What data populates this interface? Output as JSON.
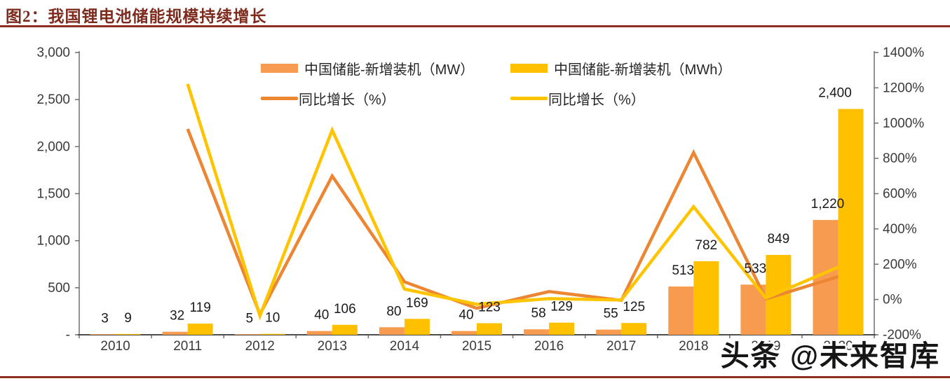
{
  "title": "图2：我国锂电池储能规模持续增长",
  "watermark": "头条 @未来智库",
  "colors": {
    "title_red": "#7e2b1e",
    "rule_red": "#8c2f1e",
    "bar_mw_orange": "#F79B51",
    "bar_mwh_yellow": "#FFC000",
    "line_mw_orange": "#ED8633",
    "line_mwh_yellow": "#FFC400",
    "axis_gray": "#6f6f6f",
    "axis_text": "#3a3a3a",
    "label_text": "#1a1a1a"
  },
  "legend": {
    "items": [
      {
        "label": "中国储能-新增装机（MW）",
        "swatch": "bar",
        "color": "#F79B51"
      },
      {
        "label": "中国储能-新增装机（MWh）",
        "swatch": "bar",
        "color": "#FFC000"
      },
      {
        "label": "同比增长（%）",
        "swatch": "line",
        "color": "#ED8633"
      },
      {
        "label": "同比增长（%）",
        "swatch": "line",
        "color": "#FFC400"
      }
    ]
  },
  "chart_data": {
    "type": "bar",
    "subtype": "combo-bar-line-dual-axis",
    "categories": [
      "2010",
      "2011",
      "2012",
      "2013",
      "2014",
      "2015",
      "2016",
      "2017",
      "2018",
      "2019",
      "2020"
    ],
    "bar_series": [
      {
        "name": "中国储能-新增装机（MW）",
        "axis": "left",
        "color": "#F79B51",
        "values": [
          3,
          32,
          5,
          40,
          80,
          40,
          58,
          55,
          513,
          533,
          1220
        ]
      },
      {
        "name": "中国储能-新增装机（MWh）",
        "axis": "left",
        "color": "#FFC000",
        "values": [
          9,
          119,
          10,
          106,
          169,
          123,
          129,
          125,
          782,
          849,
          2400
        ]
      }
    ],
    "line_series": [
      {
        "name": "同比增长（%）",
        "axis": "right",
        "color": "#ED8633",
        "values": [
          null,
          967,
          -84,
          700,
          100,
          -50,
          45,
          -5,
          833,
          4,
          129
        ]
      },
      {
        "name": "同比增长（%）",
        "axis": "right",
        "color": "#FFC400",
        "values": [
          null,
          1222,
          -92,
          960,
          59,
          -27,
          5,
          -3,
          526,
          9,
          183
        ]
      }
    ],
    "bar_labels": {
      "mw": [
        "3",
        "32",
        "5",
        "40",
        "80",
        "40",
        "58",
        "55",
        "513",
        "533",
        "1,220"
      ],
      "mwh": [
        "9",
        "119",
        "10",
        "106",
        "169",
        "123",
        "129",
        "125",
        "782",
        "849",
        "2,400"
      ]
    },
    "left_axis": {
      "min": 0,
      "max": 3000,
      "step": 500,
      "tick_labels": [
        "-",
        "500",
        "1,000",
        "1,500",
        "2,000",
        "2,500",
        "3,000"
      ]
    },
    "right_axis": {
      "min": -200,
      "max": 1400,
      "step": 200,
      "tick_labels": [
        "-200%",
        "0%",
        "200%",
        "400%",
        "600%",
        "800%",
        "1000%",
        "1200%",
        "1400%"
      ]
    },
    "grid": false,
    "legend_position": "top-center"
  }
}
